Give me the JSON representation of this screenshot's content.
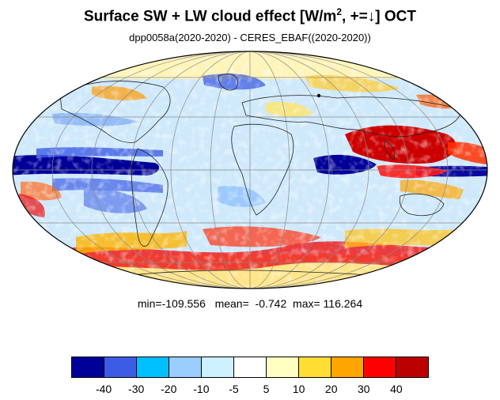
{
  "title": {
    "prefix": "Surface SW + LW cloud effect [W/m",
    "superscript": "2",
    "suffix": ", +=↓]  OCT"
  },
  "subtitle": "dpp0058a(2020-2020) - CERES_EBAF((2020-2020))",
  "stats": {
    "min_label": "min=",
    "min": "-109.556",
    "mean_label": "mean=",
    "mean": "-0.742",
    "max_label": "max=",
    "max": "116.264"
  },
  "colorbar": {
    "colors": [
      "#000099",
      "#3d5ce6",
      "#00bfff",
      "#99ccff",
      "#ccf0ff",
      "#ffffff",
      "#ffffc2",
      "#ffdd33",
      "#ffa500",
      "#ff0000",
      "#bb0000"
    ],
    "labels": [
      "-40",
      "-30",
      "-20",
      "-10",
      "-5",
      "5",
      "10",
      "20",
      "30",
      "40"
    ]
  }
}
